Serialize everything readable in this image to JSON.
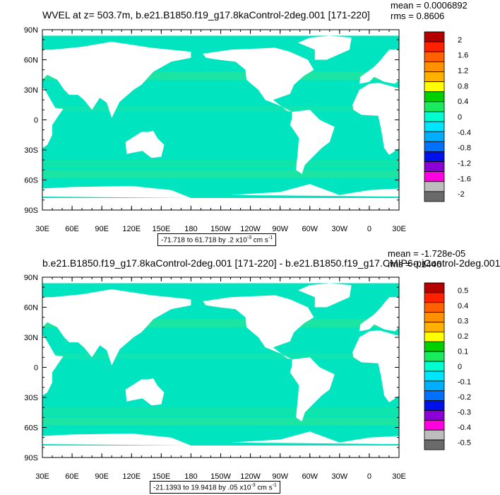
{
  "colors": {
    "ocean": "#00e5c0",
    "land": "#ffffff",
    "frame": "#000000",
    "colorbar": [
      "#6a6a6a",
      "#bdbdbd",
      "#ff00e0",
      "#8a00d6",
      "#0010e8",
      "#0070ff",
      "#00aeff",
      "#00e5ff",
      "#00ffd0",
      "#1aeb5e",
      "#00d000",
      "#ffff00",
      "#ffb000",
      "#ff9000",
      "#ff6000",
      "#ff2000",
      "#b50000"
    ]
  },
  "panels": [
    {
      "title": "WVEL at z= 503.7m, b.e21.B1850.f19_g17.8kaControl-2deg.001 [171-220]",
      "mean": "mean = 0.0006892",
      "rms": "rms = 0.8606",
      "info_prefix": "-71.718 to 61.718 by .2 x10",
      "info_exp": "-3",
      "info_unit": " cm s",
      "info_unit_exp": "-1",
      "colorbar_labels": [
        "2",
        "1.6",
        "1.2",
        "0.8",
        "0.4",
        "0",
        "-0.4",
        "-0.8",
        "-1.2",
        "-1.6",
        "-2"
      ]
    },
    {
      "title": "b.e21.B1850.f19_g17.8kaControl-2deg.001 [171-220] - b.e21.B1850.f19_g17.CMIP6-piControl-2deg.001",
      "mean": "mean = -1.728e-05",
      "rms": "rms = 0.1446",
      "info_prefix": "-21.1393 to 19.9418 by .05 x10",
      "info_exp": "-3",
      "info_unit": " cm s",
      "info_unit_exp": "-1",
      "colorbar_labels": [
        "0.5",
        "0.4",
        "0.3",
        "0.2",
        "0.1",
        "0",
        "-0.1",
        "-0.2",
        "-0.3",
        "-0.4",
        "-0.5"
      ]
    }
  ],
  "lat_labels": [
    "90N",
    "60N",
    "30N",
    "0",
    "30S",
    "60S",
    "90S"
  ],
  "lon_labels": [
    "30E",
    "60E",
    "90E",
    "120E",
    "150E",
    "180",
    "150W",
    "120W",
    "90W",
    "60W",
    "30W",
    "0",
    "30E"
  ]
}
